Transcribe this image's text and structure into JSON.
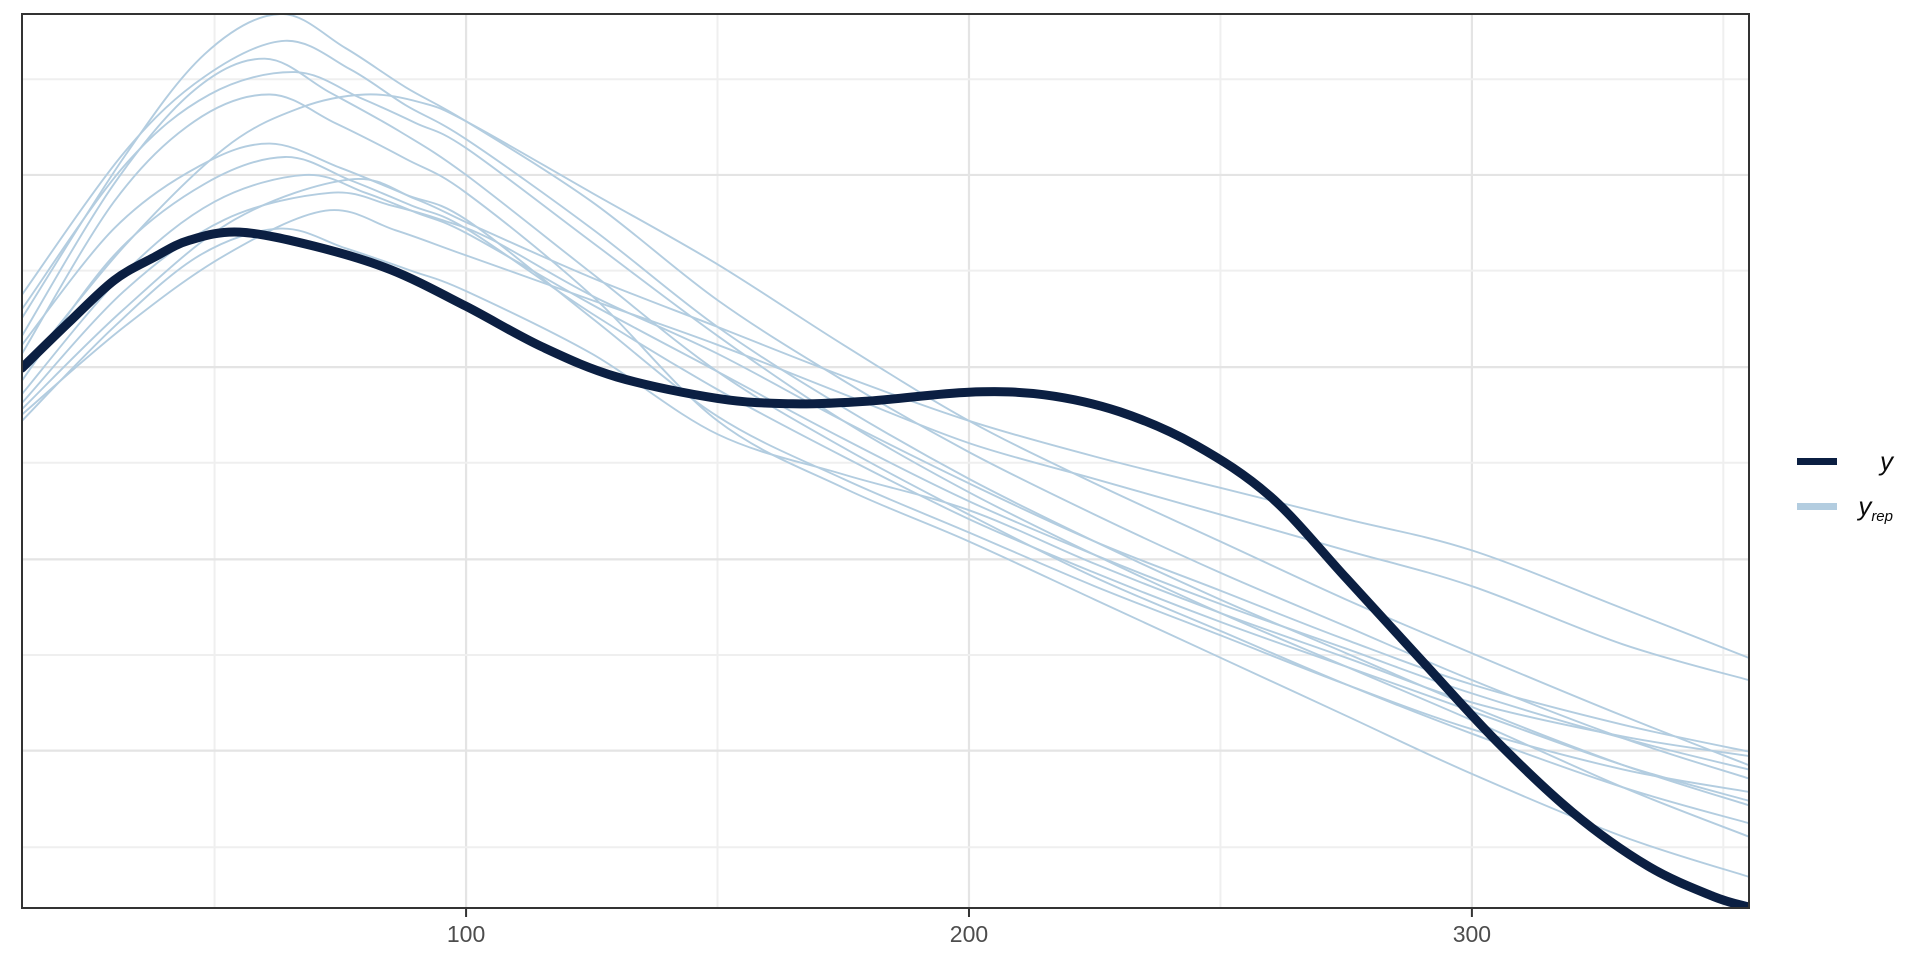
{
  "chart_data": {
    "type": "line",
    "title": "",
    "subtitle": "",
    "xlabel": "",
    "ylabel": "",
    "x_ticks": [
      100,
      200,
      300
    ],
    "x_tick_labels": [
      "100",
      "200",
      "300"
    ],
    "x_minor_ticks": [
      50,
      150,
      250,
      350
    ],
    "x_range": [
      11.7,
      355.1
    ],
    "y_range": [
      0,
      1
    ],
    "y_ticks": [],
    "y_gridlines_major": [
      0.82,
      0.605,
      0.39,
      0.176
    ],
    "y_gridlines_minor": [
      0.927,
      0.713,
      0.498,
      0.283,
      0.068
    ],
    "grid": "on",
    "legend_position": "right",
    "panel_border_color": "#333333",
    "grid_major_color": "#e4e4e4",
    "grid_minor_color": "#efefef",
    "tick_color": "#333333",
    "tick_label_color": "#4d4d4d",
    "series": [
      {
        "name": "y",
        "role": "observed",
        "color": "#0b1f42",
        "width": 9,
        "points": [
          [
            11.7,
            0.604
          ],
          [
            21,
            0.655
          ],
          [
            30,
            0.702
          ],
          [
            38,
            0.728
          ],
          [
            45,
            0.747
          ],
          [
            55,
            0.756
          ],
          [
            70,
            0.74
          ],
          [
            85,
            0.714
          ],
          [
            100,
            0.673
          ],
          [
            115,
            0.628
          ],
          [
            130,
            0.594
          ],
          [
            150,
            0.57
          ],
          [
            165,
            0.564
          ],
          [
            180,
            0.567
          ],
          [
            200,
            0.577
          ],
          [
            215,
            0.574
          ],
          [
            230,
            0.555
          ],
          [
            245,
            0.518
          ],
          [
            260,
            0.46
          ],
          [
            275,
            0.369
          ],
          [
            290,
            0.277
          ],
          [
            305,
            0.186
          ],
          [
            320,
            0.107
          ],
          [
            335,
            0.047
          ],
          [
            348,
            0.013
          ],
          [
            355.1,
            0.001
          ]
        ]
      },
      {
        "name": "y_rep",
        "role": "replicate",
        "color": "#b3cde0",
        "width": 1.9,
        "points": [
          [
            11.7,
            0.66
          ],
          [
            32,
            0.84
          ],
          [
            48,
            0.955
          ],
          [
            63,
            1.0
          ],
          [
            76,
            0.962
          ],
          [
            88,
            0.918
          ],
          [
            100,
            0.88
          ],
          [
            125,
            0.79
          ],
          [
            150,
            0.68
          ],
          [
            175,
            0.59
          ],
          [
            200,
            0.51
          ],
          [
            225,
            0.44
          ],
          [
            250,
            0.375
          ],
          [
            275,
            0.315
          ],
          [
            300,
            0.255
          ],
          [
            330,
            0.19
          ],
          [
            355,
            0.145
          ]
        ]
      },
      {
        "name": "y_rep",
        "role": "replicate",
        "color": "#b3cde0",
        "width": 1.9,
        "points": [
          [
            11.7,
            0.686
          ],
          [
            32,
            0.845
          ],
          [
            48,
            0.93
          ],
          [
            64,
            0.97
          ],
          [
            77,
            0.938
          ],
          [
            88,
            0.898
          ],
          [
            100,
            0.86
          ],
          [
            125,
            0.76
          ],
          [
            150,
            0.65
          ],
          [
            175,
            0.56
          ],
          [
            200,
            0.48
          ],
          [
            225,
            0.41
          ],
          [
            250,
            0.345
          ],
          [
            275,
            0.285
          ],
          [
            300,
            0.225
          ],
          [
            330,
            0.16
          ],
          [
            355,
            0.115
          ]
        ]
      },
      {
        "name": "y_rep",
        "role": "replicate",
        "color": "#b3cde0",
        "width": 1.9,
        "points": [
          [
            11.7,
            0.64
          ],
          [
            30,
            0.81
          ],
          [
            46,
            0.915
          ],
          [
            60,
            0.95
          ],
          [
            73,
            0.912
          ],
          [
            87,
            0.868
          ],
          [
            100,
            0.82
          ],
          [
            125,
            0.71
          ],
          [
            150,
            0.6
          ],
          [
            175,
            0.515
          ],
          [
            200,
            0.44
          ],
          [
            225,
            0.37
          ],
          [
            250,
            0.31
          ],
          [
            275,
            0.25
          ],
          [
            300,
            0.195
          ],
          [
            330,
            0.135
          ],
          [
            355,
            0.095
          ]
        ]
      },
      {
        "name": "y_rep",
        "role": "replicate",
        "color": "#b3cde0",
        "width": 1.9,
        "points": [
          [
            11.7,
            0.67
          ],
          [
            32,
            0.83
          ],
          [
            49,
            0.91
          ],
          [
            66,
            0.935
          ],
          [
            79,
            0.906
          ],
          [
            90,
            0.878
          ],
          [
            100,
            0.85
          ],
          [
            125,
            0.745
          ],
          [
            150,
            0.64
          ],
          [
            175,
            0.545
          ],
          [
            200,
            0.465
          ],
          [
            225,
            0.395
          ],
          [
            250,
            0.33
          ],
          [
            275,
            0.27
          ],
          [
            300,
            0.21
          ],
          [
            330,
            0.135
          ],
          [
            355,
            0.08
          ]
        ]
      },
      {
        "name": "y_rep",
        "role": "replicate",
        "color": "#b3cde0",
        "width": 1.9,
        "points": [
          [
            11.7,
            0.62
          ],
          [
            30,
            0.79
          ],
          [
            46,
            0.88
          ],
          [
            61,
            0.91
          ],
          [
            74,
            0.878
          ],
          [
            88,
            0.838
          ],
          [
            100,
            0.8
          ],
          [
            125,
            0.685
          ],
          [
            150,
            0.545
          ],
          [
            175,
            0.47
          ],
          [
            200,
            0.41
          ],
          [
            225,
            0.345
          ],
          [
            250,
            0.28
          ],
          [
            275,
            0.215
          ],
          [
            300,
            0.15
          ],
          [
            330,
            0.08
          ],
          [
            355,
            0.035
          ]
        ]
      },
      {
        "name": "y_rep",
        "role": "replicate",
        "color": "#b3cde0",
        "width": 1.9,
        "points": [
          [
            11.7,
            0.6
          ],
          [
            32,
            0.74
          ],
          [
            52,
            0.85
          ],
          [
            67,
            0.895
          ],
          [
            80,
            0.91
          ],
          [
            91,
            0.901
          ],
          [
            100,
            0.88
          ],
          [
            125,
            0.8
          ],
          [
            150,
            0.72
          ],
          [
            175,
            0.63
          ],
          [
            200,
            0.545
          ],
          [
            225,
            0.475
          ],
          [
            250,
            0.41
          ],
          [
            275,
            0.345
          ],
          [
            300,
            0.285
          ],
          [
            330,
            0.215
          ],
          [
            355,
            0.16
          ]
        ]
      },
      {
        "name": "y_rep",
        "role": "replicate",
        "color": "#b3cde0",
        "width": 1.9,
        "points": [
          [
            11.7,
            0.63
          ],
          [
            30,
            0.76
          ],
          [
            47,
            0.83
          ],
          [
            61,
            0.855
          ],
          [
            75,
            0.828
          ],
          [
            88,
            0.798
          ],
          [
            100,
            0.77
          ],
          [
            125,
            0.66
          ],
          [
            150,
            0.55
          ],
          [
            175,
            0.48
          ],
          [
            200,
            0.42
          ],
          [
            225,
            0.36
          ],
          [
            250,
            0.305
          ],
          [
            275,
            0.25
          ],
          [
            300,
            0.2
          ],
          [
            330,
            0.155
          ],
          [
            355,
            0.13
          ]
        ]
      },
      {
        "name": "y_rep",
        "role": "replicate",
        "color": "#b3cde0",
        "width": 1.9,
        "points": [
          [
            11.7,
            0.59
          ],
          [
            30,
            0.73
          ],
          [
            48,
            0.81
          ],
          [
            64,
            0.84
          ],
          [
            77,
            0.814
          ],
          [
            89,
            0.786
          ],
          [
            100,
            0.76
          ],
          [
            125,
            0.665
          ],
          [
            150,
            0.58
          ],
          [
            175,
            0.505
          ],
          [
            200,
            0.435
          ],
          [
            225,
            0.375
          ],
          [
            250,
            0.32
          ],
          [
            275,
            0.27
          ],
          [
            300,
            0.22
          ],
          [
            330,
            0.16
          ],
          [
            355,
            0.12
          ]
        ]
      },
      {
        "name": "y_rep",
        "role": "replicate",
        "color": "#b3cde0",
        "width": 1.9,
        "points": [
          [
            11.7,
            0.575
          ],
          [
            32,
            0.71
          ],
          [
            50,
            0.79
          ],
          [
            68,
            0.82
          ],
          [
            80,
            0.8
          ],
          [
            90,
            0.778
          ],
          [
            100,
            0.755
          ],
          [
            125,
            0.675
          ],
          [
            150,
            0.6
          ],
          [
            175,
            0.525
          ],
          [
            200,
            0.455
          ],
          [
            225,
            0.395
          ],
          [
            250,
            0.34
          ],
          [
            275,
            0.29
          ],
          [
            300,
            0.24
          ],
          [
            330,
            0.19
          ],
          [
            355,
            0.155
          ]
        ]
      },
      {
        "name": "y_rep",
        "role": "replicate",
        "color": "#b3cde0",
        "width": 1.9,
        "points": [
          [
            11.7,
            0.565
          ],
          [
            32,
            0.69
          ],
          [
            52,
            0.77
          ],
          [
            73,
            0.8
          ],
          [
            85,
            0.786
          ],
          [
            95,
            0.77
          ],
          [
            105,
            0.748
          ],
          [
            125,
            0.685
          ],
          [
            150,
            0.62
          ],
          [
            175,
            0.545
          ],
          [
            200,
            0.475
          ],
          [
            225,
            0.41
          ],
          [
            250,
            0.355
          ],
          [
            275,
            0.3
          ],
          [
            300,
            0.25
          ],
          [
            330,
            0.205
          ],
          [
            355,
            0.175
          ]
        ]
      },
      {
        "name": "y_rep",
        "role": "replicate",
        "color": "#b3cde0",
        "width": 1.9,
        "points": [
          [
            11.7,
            0.558
          ],
          [
            32,
            0.67
          ],
          [
            54,
            0.77
          ],
          [
            77,
            0.815
          ],
          [
            90,
            0.793
          ],
          [
            102,
            0.762
          ],
          [
            125,
            0.705
          ],
          [
            150,
            0.65
          ],
          [
            175,
            0.595
          ],
          [
            200,
            0.545
          ],
          [
            225,
            0.505
          ],
          [
            250,
            0.47
          ],
          [
            275,
            0.435
          ],
          [
            300,
            0.4
          ],
          [
            330,
            0.335
          ],
          [
            355,
            0.28
          ]
        ]
      },
      {
        "name": "y_rep",
        "role": "replicate",
        "color": "#b3cde0",
        "width": 1.9,
        "points": [
          [
            11.7,
            0.552
          ],
          [
            32,
            0.65
          ],
          [
            52,
            0.73
          ],
          [
            72,
            0.78
          ],
          [
            86,
            0.758
          ],
          [
            100,
            0.73
          ],
          [
            125,
            0.68
          ],
          [
            150,
            0.63
          ],
          [
            175,
            0.575
          ],
          [
            200,
            0.52
          ],
          [
            225,
            0.48
          ],
          [
            250,
            0.44
          ],
          [
            275,
            0.4
          ],
          [
            300,
            0.36
          ],
          [
            330,
            0.295
          ],
          [
            355,
            0.255
          ]
        ]
      },
      {
        "name": "y_rep",
        "role": "replicate",
        "color": "#b3cde0",
        "width": 1.9,
        "points": [
          [
            11.7,
            0.545
          ],
          [
            30,
            0.65
          ],
          [
            47,
            0.73
          ],
          [
            63,
            0.76
          ],
          [
            76,
            0.738
          ],
          [
            89,
            0.713
          ],
          [
            100,
            0.69
          ],
          [
            125,
            0.62
          ],
          [
            150,
            0.53
          ],
          [
            175,
            0.485
          ],
          [
            200,
            0.445
          ],
          [
            225,
            0.385
          ],
          [
            250,
            0.33
          ],
          [
            275,
            0.28
          ],
          [
            300,
            0.23
          ],
          [
            330,
            0.192
          ],
          [
            355,
            0.17
          ]
        ]
      }
    ]
  },
  "legend": {
    "items": [
      {
        "label": "y",
        "sub": "",
        "color": "#0b1f42"
      },
      {
        "label": "y",
        "sub": "rep",
        "color": "#b3cde0"
      }
    ]
  }
}
